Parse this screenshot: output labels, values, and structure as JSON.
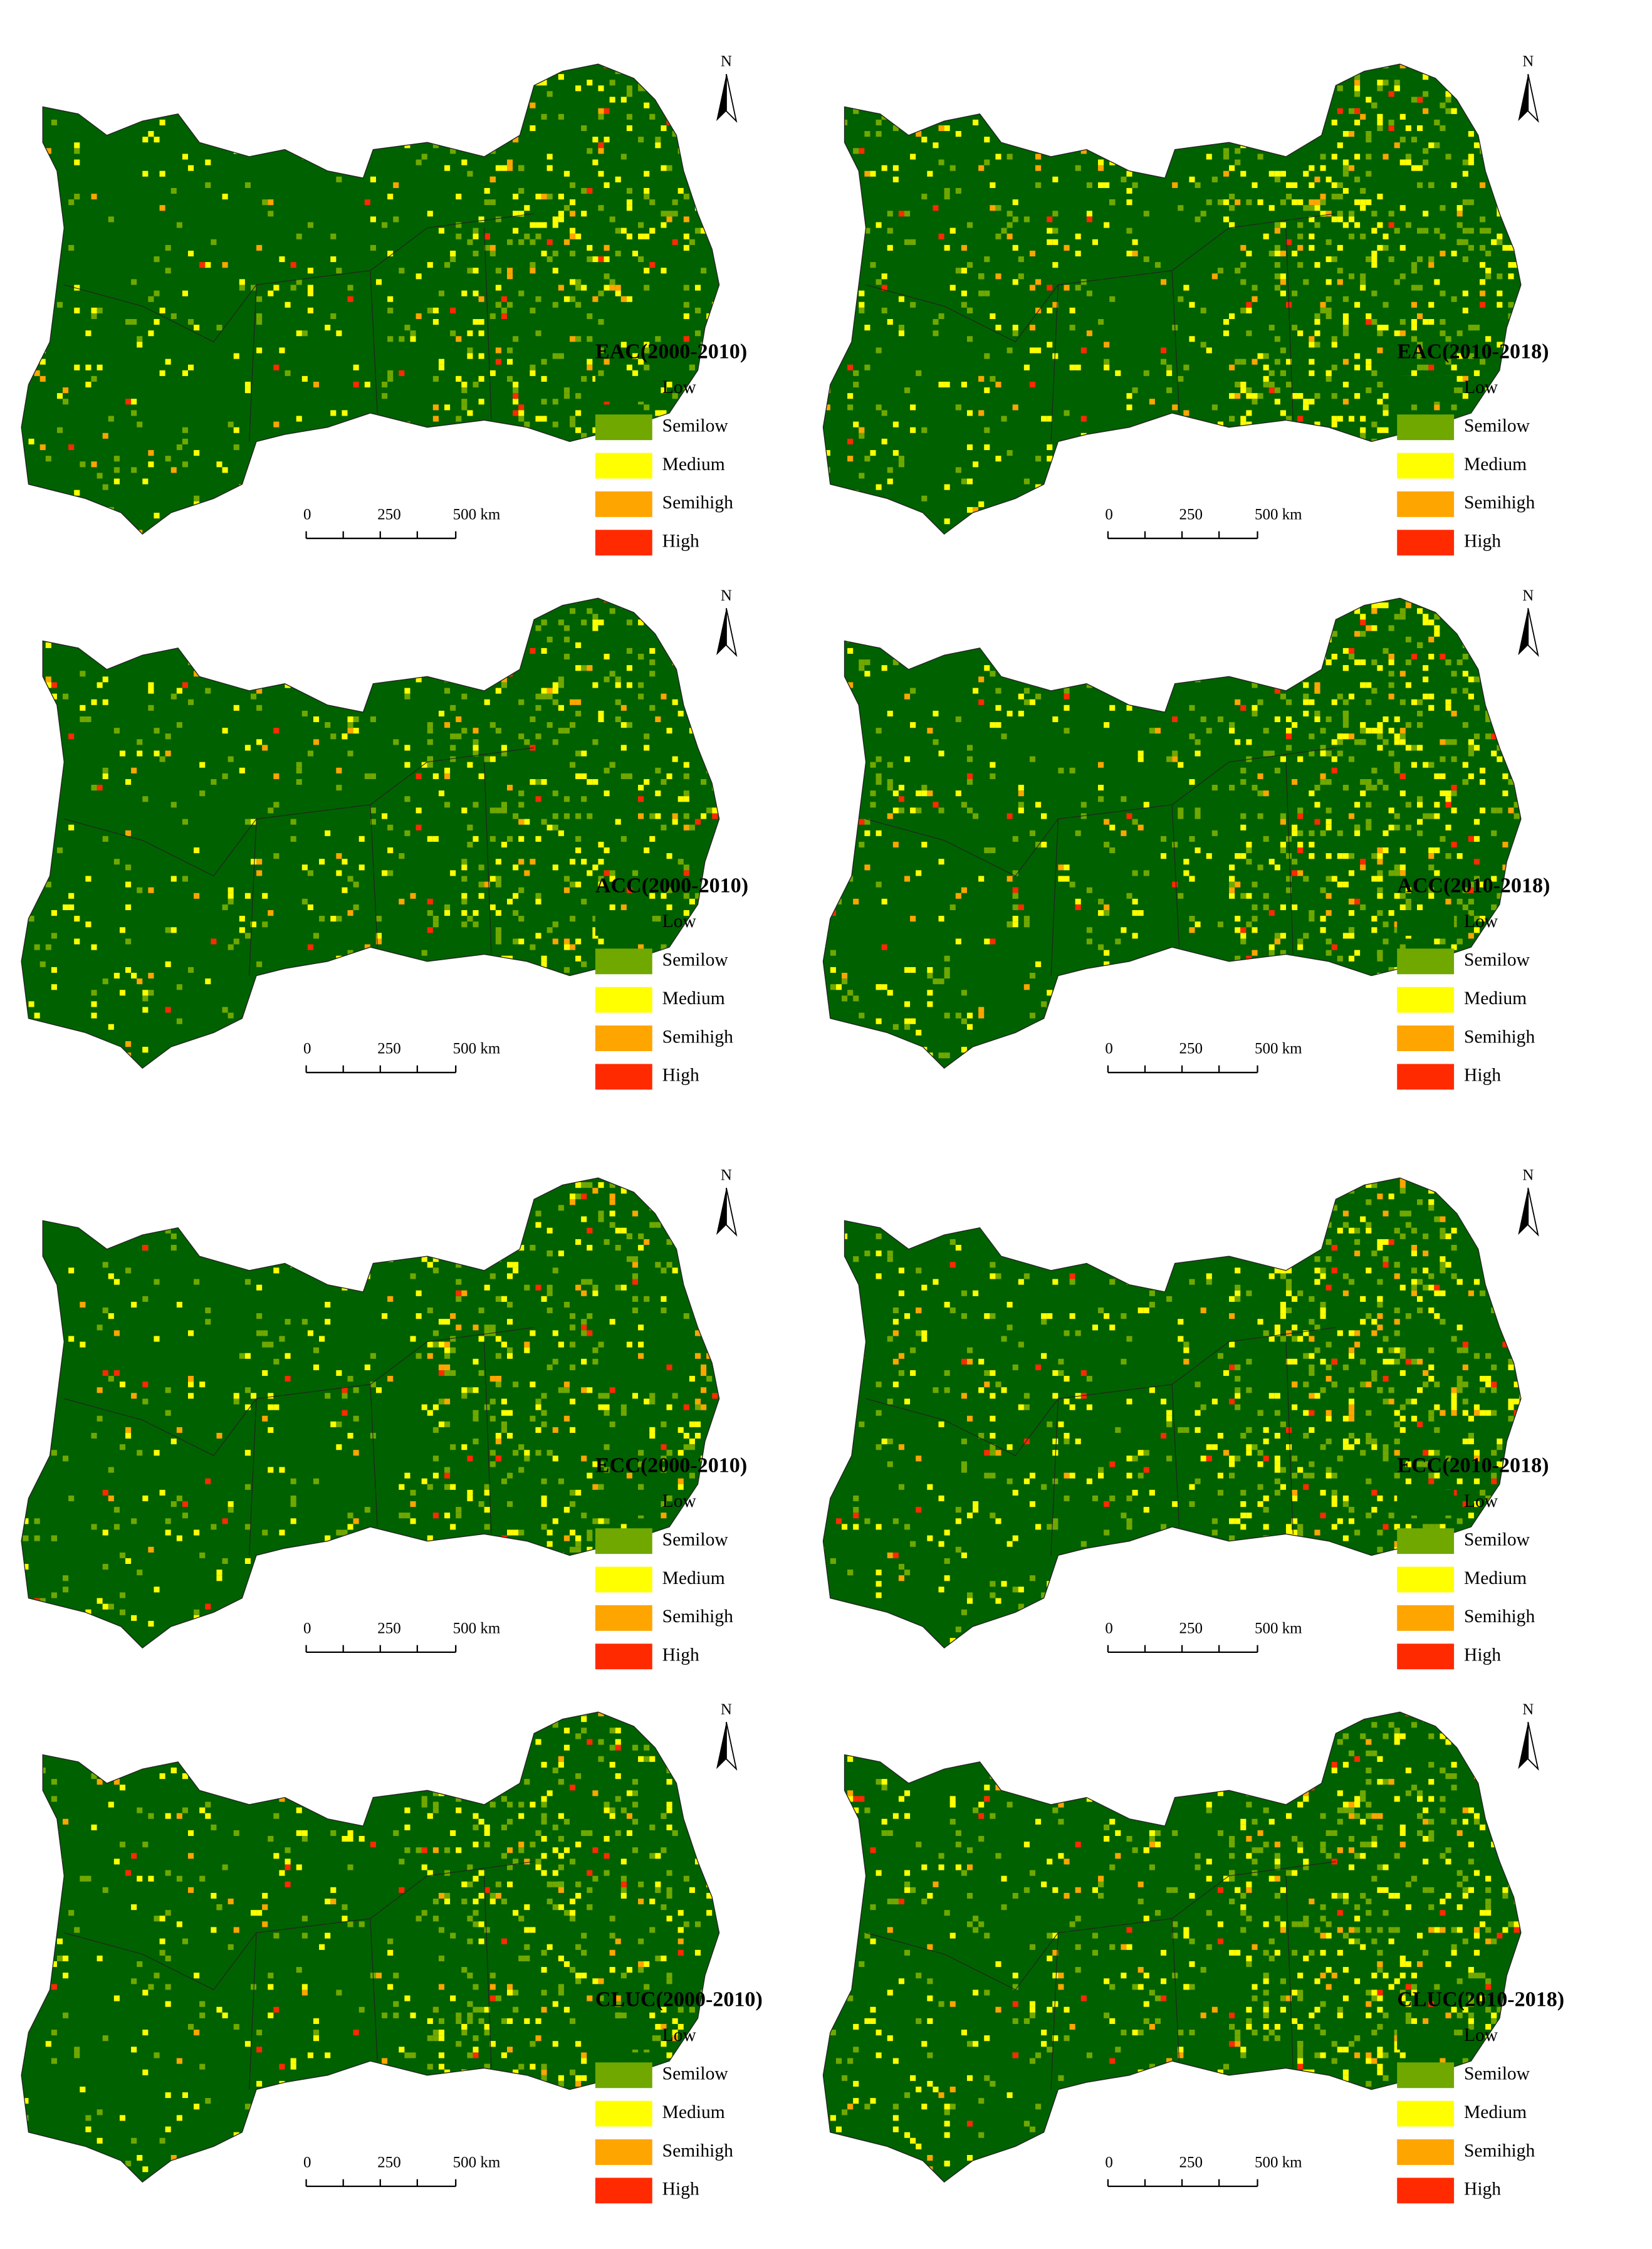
{
  "panels": [
    {
      "title": "EAC(2000-2010)"
    },
    {
      "title": "EAC(2010-2018)"
    },
    {
      "title": "ACC(2000-2010)"
    },
    {
      "title": "ACC(2010-2018)"
    },
    {
      "title": "ECC(2000-2010)"
    },
    {
      "title": "ECC(2010-2018)"
    },
    {
      "title": "CLUC(2000-2010)"
    },
    {
      "title": "CLUC(2010-2018)"
    }
  ],
  "legend": [
    {
      "label": "Low",
      "color": "#006100"
    },
    {
      "label": "Semilow",
      "color": "#70a800"
    },
    {
      "label": "Medium",
      "color": "#ffff00"
    },
    {
      "label": "Semihigh",
      "color": "#ffa500"
    },
    {
      "label": "High",
      "color": "#ff2a00"
    }
  ],
  "scale_labels": [
    "0",
    "250",
    "500 km"
  ],
  "north": "N"
}
